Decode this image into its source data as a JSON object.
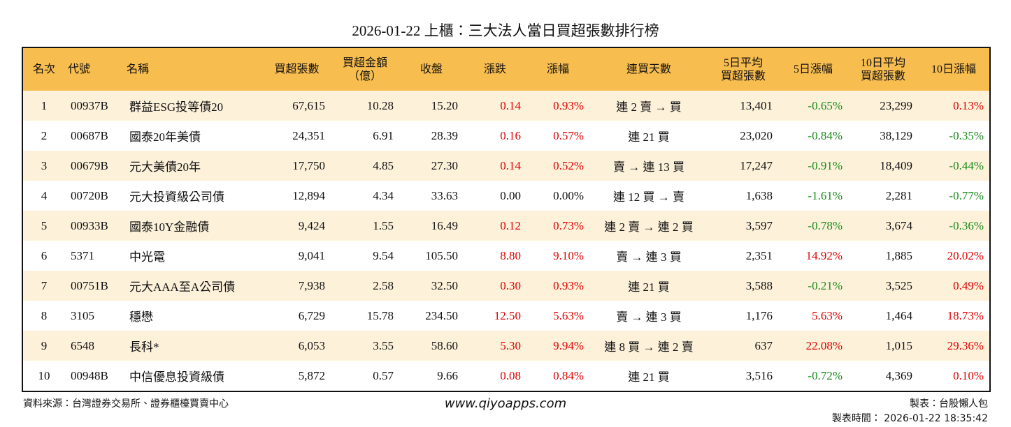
{
  "title": "2026-01-22 上櫃：三大法人當日買超張數排行榜",
  "colors": {
    "header": "#f8bd4f",
    "stripe": "#fdf1da",
    "up": "#e00000",
    "down": "#1a8a1a"
  },
  "table": {
    "headers": [
      "名次",
      "代號",
      "名稱",
      "買超張數",
      "買超金額\n（億）",
      "收盤",
      "漲跌",
      "漲幅",
      "連買天數",
      "5日平均\n買超張數",
      "5日漲幅",
      "10日平均\n買超張數",
      "10日漲幅"
    ],
    "rows": [
      [
        "1",
        "00937B",
        "群益ESG投等債20",
        "67,615",
        "10.28",
        "15.20",
        "0.14",
        "0.93%",
        "連 2 賣 → 買",
        "13,401",
        "-0.65%",
        "23,299",
        "0.13%"
      ],
      [
        "2",
        "00687B",
        "國泰20年美債",
        "24,351",
        "6.91",
        "28.39",
        "0.16",
        "0.57%",
        "連 21 買",
        "23,020",
        "-0.84%",
        "38,129",
        "-0.35%"
      ],
      [
        "3",
        "00679B",
        "元大美債20年",
        "17,750",
        "4.85",
        "27.30",
        "0.14",
        "0.52%",
        "賣 → 連 13 買",
        "17,247",
        "-0.91%",
        "18,409",
        "-0.44%"
      ],
      [
        "4",
        "00720B",
        "元大投資級公司債",
        "12,894",
        "4.34",
        "33.63",
        "0.00",
        "0.00%",
        "連 12 買 → 賣",
        "1,638",
        "-1.61%",
        "2,281",
        "-0.77%"
      ],
      [
        "5",
        "00933B",
        "國泰10Y金融債",
        "9,424",
        "1.55",
        "16.49",
        "0.12",
        "0.73%",
        "連 2 賣 → 連 2 買",
        "3,597",
        "-0.78%",
        "3,674",
        "-0.36%"
      ],
      [
        "6",
        "5371",
        "中光電",
        "9,041",
        "9.54",
        "105.50",
        "8.80",
        "9.10%",
        "賣 → 連 3 買",
        "2,351",
        "14.92%",
        "1,885",
        "20.02%"
      ],
      [
        "7",
        "00751B",
        "元大AAA至A公司債",
        "7,938",
        "2.58",
        "32.50",
        "0.30",
        "0.93%",
        "連 21 買",
        "3,588",
        "-0.21%",
        "3,525",
        "0.49%"
      ],
      [
        "8",
        "3105",
        "穩懋",
        "6,729",
        "15.78",
        "234.50",
        "12.50",
        "5.63%",
        "賣 → 連 3 買",
        "1,176",
        "5.63%",
        "1,464",
        "18.73%"
      ],
      [
        "9",
        "6548",
        "長科*",
        "6,053",
        "3.55",
        "58.60",
        "5.30",
        "9.94%",
        "連 8 買 → 連 2 賣",
        "637",
        "22.08%",
        "1,015",
        "29.36%"
      ],
      [
        "10",
        "00948B",
        "中信優息投資級債",
        "5,872",
        "0.57",
        "9.66",
        "0.08",
        "0.84%",
        "連 21 買",
        "3,516",
        "-0.72%",
        "4,369",
        "0.10%"
      ]
    ]
  },
  "footer": {
    "source": "資料來源：台灣證券交易所、證券櫃檯買賣中心",
    "website": "www.qiyoapps.com",
    "author": "製表：台股懶人包",
    "time": "製表時間： 2026-01-22 18:35:42"
  }
}
